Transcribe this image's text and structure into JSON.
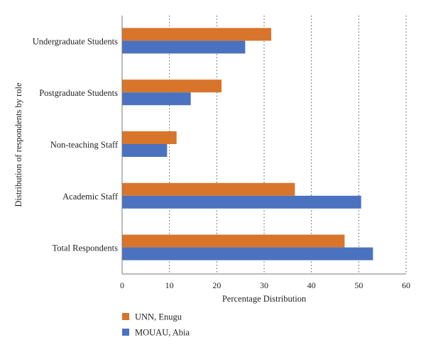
{
  "chart_data": {
    "type": "bar",
    "orientation": "horizontal",
    "categories": [
      "Undergraduate Students",
      "Postgraduate Students",
      "Non-teaching Staff",
      "Academic Staff",
      "Total Respondents"
    ],
    "series": [
      {
        "name": "UNN, Enugu",
        "color": "#d9742b",
        "values": [
          31.5,
          21,
          11.5,
          36.5,
          47
        ]
      },
      {
        "name": "MOUAU, Abia",
        "color": "#4a72c0",
        "values": [
          26,
          14.5,
          9.5,
          50.5,
          53
        ]
      }
    ],
    "xlabel": "Percentage Distribution",
    "ylabel": "Distribution of respondents by role",
    "xlim": [
      0,
      60
    ],
    "xticks": [
      "0",
      "10",
      "20",
      "30",
      "40",
      "50",
      "60"
    ],
    "grid": "vertical-dotted",
    "legend_position": "bottom-left"
  }
}
